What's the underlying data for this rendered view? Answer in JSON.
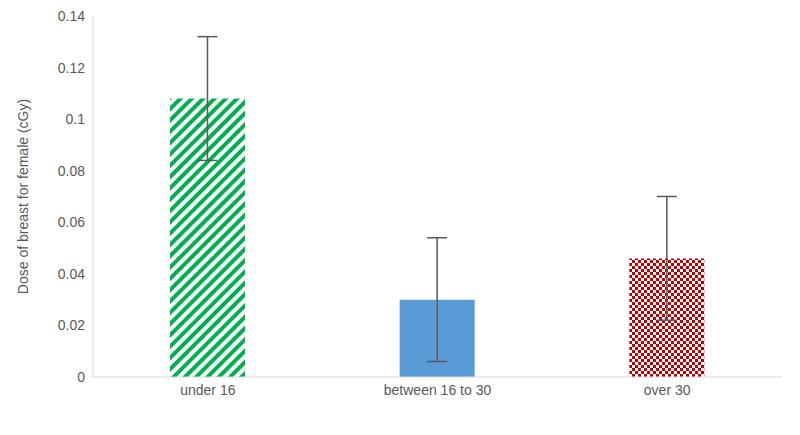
{
  "chart_data": {
    "type": "bar",
    "y_label": "Dose of breast for female (cGy)",
    "categories": [
      "under 16",
      "between 16 to 30",
      "over 30"
    ],
    "values": [
      0.108,
      0.03,
      0.046
    ],
    "errors": [
      0.024,
      0.024,
      0.024
    ],
    "colors": [
      "#00b050",
      "#5b9bd5",
      "#c00000"
    ],
    "ylim": [
      0,
      0.14
    ],
    "yticks": [
      0,
      0.02,
      0.04,
      0.06,
      0.08,
      0.1,
      0.12,
      0.14
    ],
    "grid": false
  }
}
